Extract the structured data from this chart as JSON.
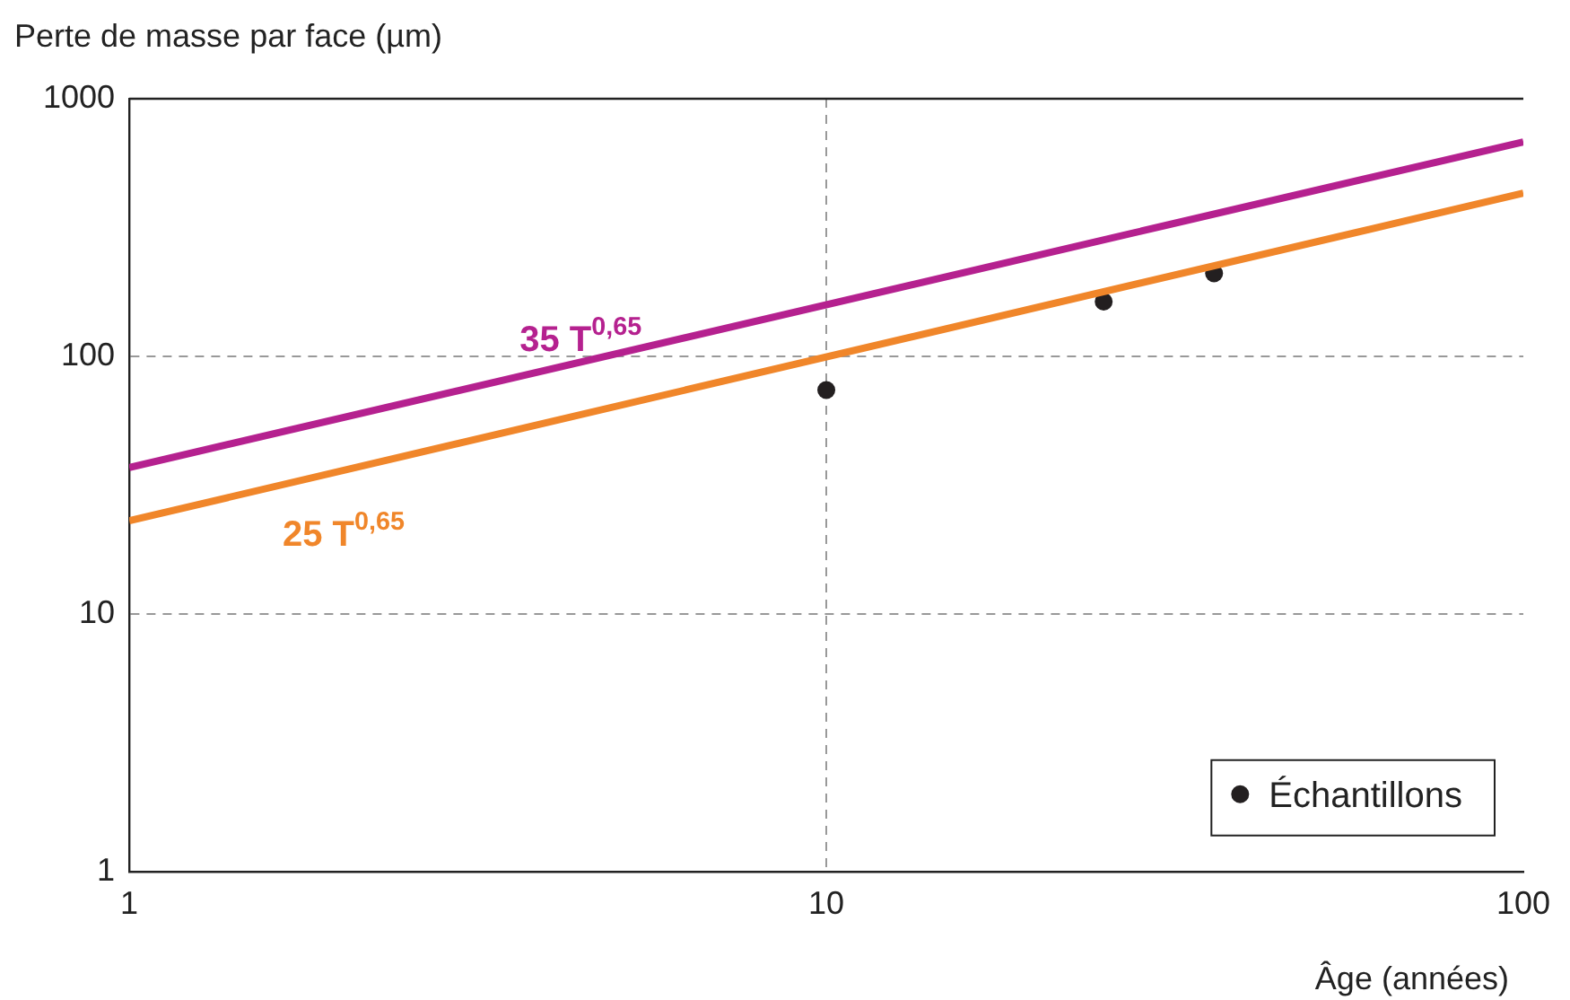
{
  "chart_data": {
    "type": "scatter",
    "xlabel": "Âge (années)",
    "ylabel": "Perte de masse par face (µm)",
    "log": "xy",
    "xlim": [
      1,
      100
    ],
    "xticks": [
      1,
      10,
      100
    ],
    "ylim": [
      1,
      1000
    ],
    "yticks": [
      1,
      10,
      100,
      1000
    ],
    "grid": true,
    "legend": "bottom right",
    "series": [
      {
        "type": "line",
        "name": "35 T$^{0,65}$",
        "color": "#b5218f",
        "x": [
          1,
          100
        ],
        "values": [
          37,
          680
        ],
        "marker": "none"
      },
      {
        "type": "line",
        "name": "25 T$^{0,65}$",
        "color": "#f0862a",
        "x": [
          1,
          100
        ],
        "values": [
          23,
          430
        ],
        "marker": "none"
      },
      {
        "type": "scatter",
        "name": "Échantillons",
        "color": "#231f20",
        "x": [
          10,
          25,
          36
        ],
        "values": [
          74,
          163,
          210
        ],
        "marker": "circle"
      }
    ]
  }
}
